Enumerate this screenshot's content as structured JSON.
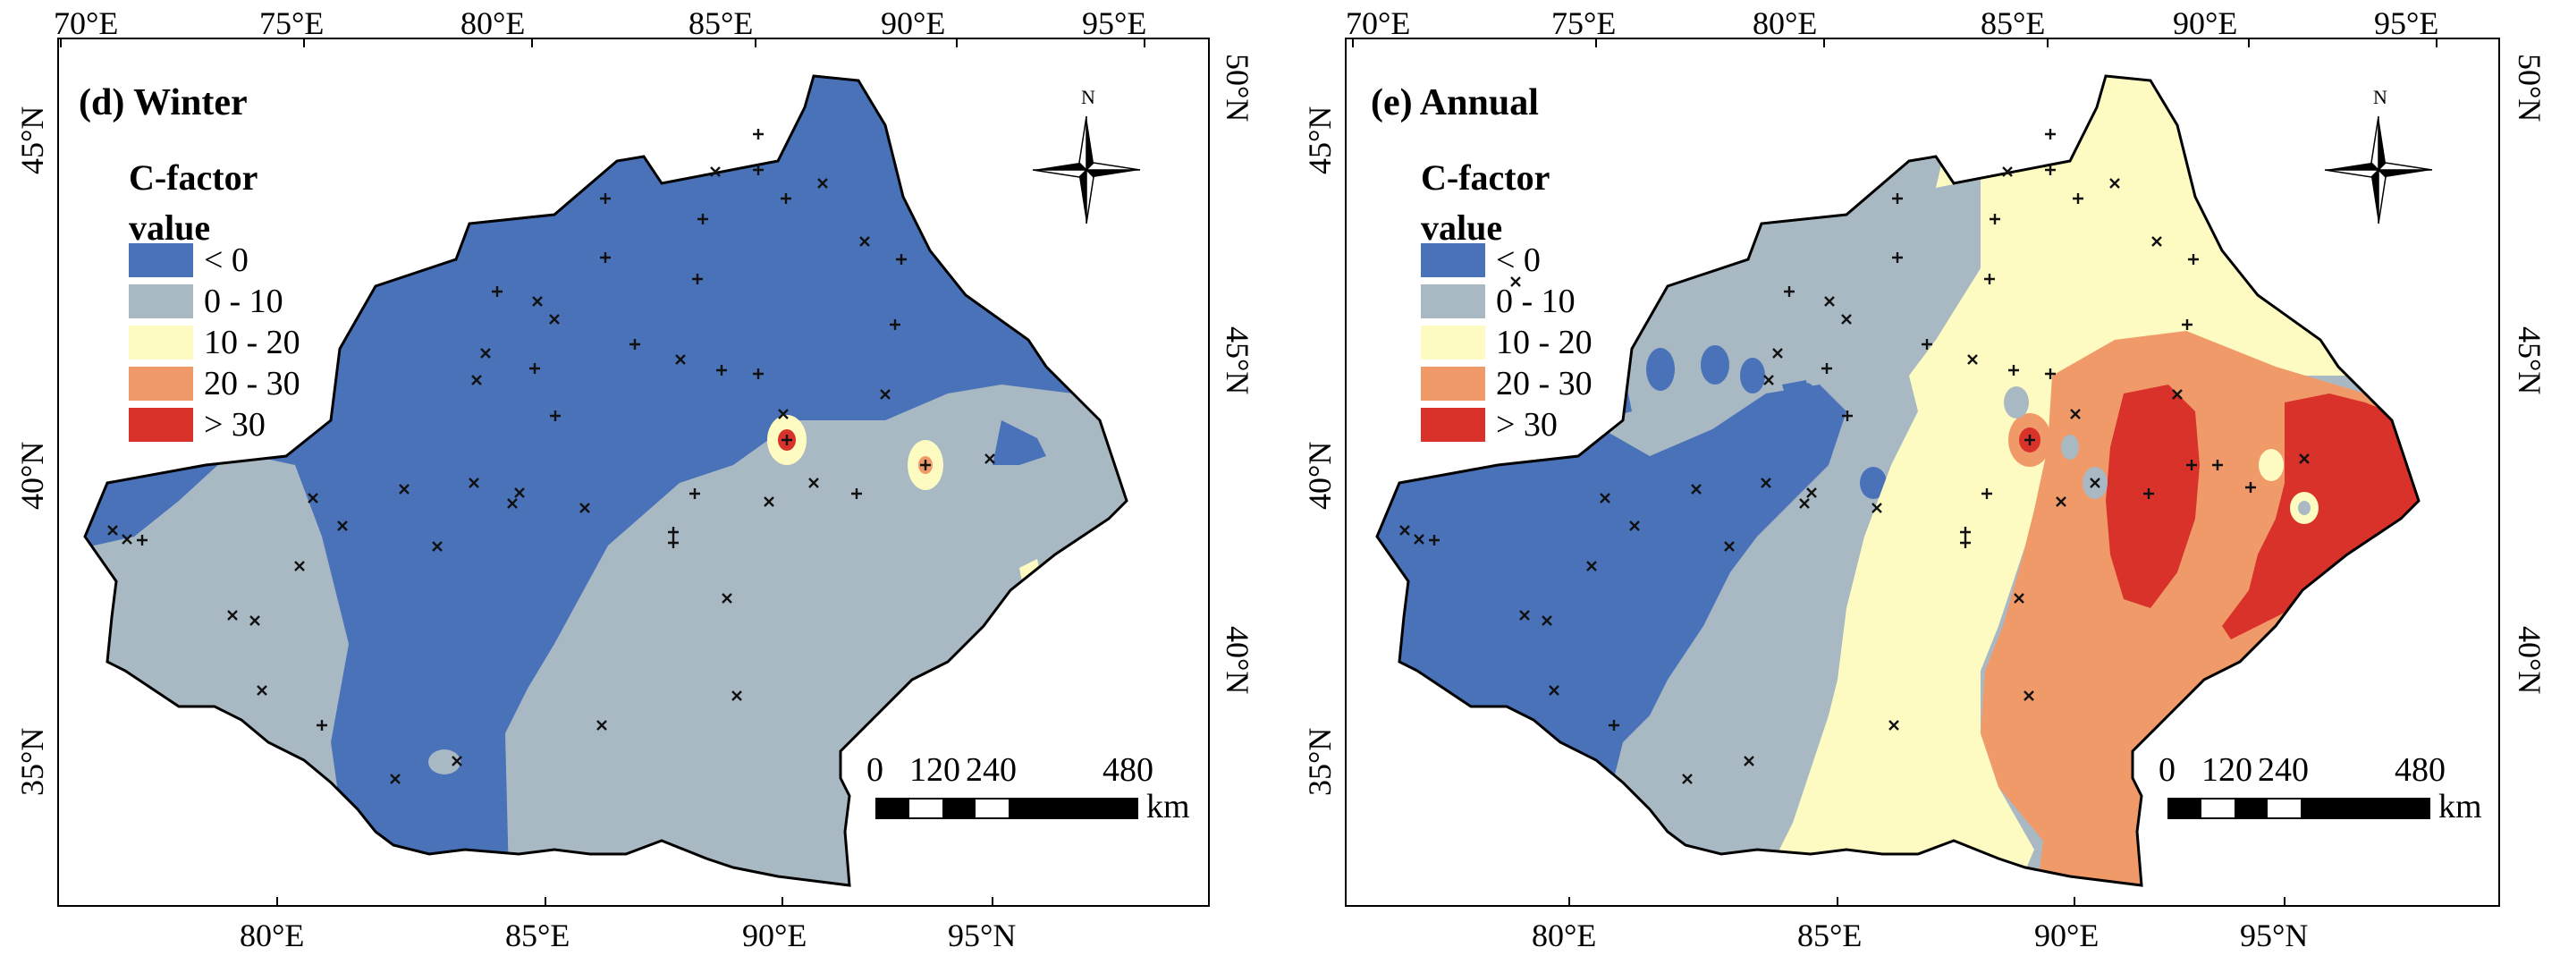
{
  "colors": {
    "lt0": "#4a72b8",
    "r0_10": "#a9b9c4",
    "r10_20": "#fdfbc1",
    "r20_30": "#f19a69",
    "gt30": "#d8322b"
  },
  "panels": [
    {
      "title": "(d)  Winter",
      "legend": {
        "title_line1": "C-factor",
        "title_line2": "value",
        "items": [
          "< 0",
          "0 - 10",
          "10 - 20",
          "20 - 30",
          "> 30"
        ]
      },
      "ticks_top": [
        "70°E",
        "75°E",
        "80°E",
        "85°E",
        "90°E",
        "95°E"
      ],
      "ticks_bottom": [
        "80°E",
        "85°E",
        "90°E",
        "95°N"
      ],
      "ticks_left": [
        "45°N",
        "40°N",
        "35°N"
      ],
      "ticks_right": [
        "50°N",
        "45°N",
        "40°N"
      ],
      "scale": {
        "labels": [
          "0",
          "120",
          "240",
          "480"
        ],
        "unit": "km"
      },
      "north_label": "N"
    },
    {
      "title": "(e)  Annual",
      "legend": {
        "title_line1": "C-factor",
        "title_line2": "value",
        "items": [
          "< 0",
          "0 - 10",
          "10 - 20",
          "20 - 30",
          "> 30"
        ]
      },
      "ticks_top": [
        "70°E",
        "75°E",
        "80°E",
        "85°E",
        "90°E",
        "95°E"
      ],
      "ticks_bottom": [
        "80°E",
        "85°E",
        "90°E",
        "95°N"
      ],
      "ticks_left": [
        "45°N",
        "40°N",
        "35°N"
      ],
      "ticks_right": [
        "50°N",
        "45°N",
        "40°N"
      ],
      "scale": {
        "labels": [
          "0",
          "120",
          "240",
          "480"
        ],
        "unit": "km"
      },
      "north_label": "N"
    }
  ]
}
